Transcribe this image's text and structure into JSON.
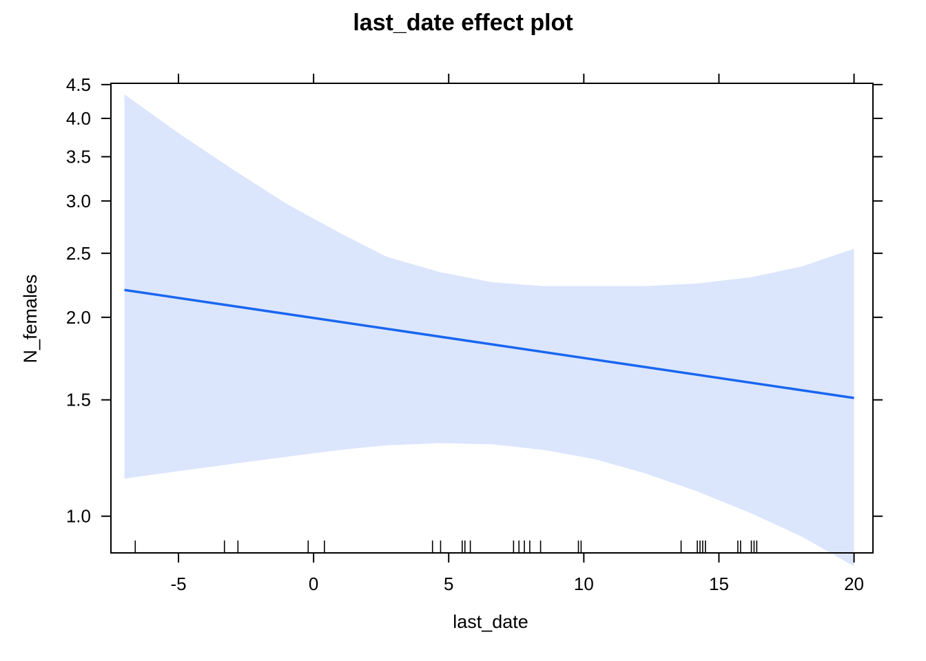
{
  "chart_data": {
    "type": "line",
    "title": "last_date effect plot",
    "xlabel": "last_date",
    "ylabel": "N_females",
    "xlim": [
      -7.5,
      20.7
    ],
    "ylim": [
      0.88,
      4.52
    ],
    "y_scale": "log",
    "x_ticks": [
      -5,
      0,
      5,
      10,
      15,
      20
    ],
    "x_tick_labels": [
      "-5",
      "0",
      "5",
      "10",
      "15",
      "20"
    ],
    "y_ticks": [
      1.0,
      1.5,
      2.0,
      2.5,
      3.0,
      3.5,
      4.0,
      4.5
    ],
    "y_tick_labels": [
      "1.0",
      "1.5",
      "2.0",
      "2.5",
      "3.0",
      "3.5",
      "4.0",
      "4.5"
    ],
    "grid": false,
    "legend": "none",
    "colors": {
      "line": "#1a66f0",
      "band": "#dbe6fd",
      "axes": "#000000"
    },
    "series": [
      {
        "x": [
          -7.0,
          20.0
        ],
        "y": [
          2.2,
          1.51
        ]
      }
    ],
    "confidence_band": {
      "x": [
        -7.0,
        -5.0,
        -3.0,
        -1.0,
        1.0,
        2.7,
        4.7,
        6.6,
        8.5,
        10.4,
        12.3,
        14.2,
        16.2,
        18.1,
        20.0
      ],
      "lower": [
        1.14,
        1.17,
        1.2,
        1.23,
        1.26,
        1.28,
        1.29,
        1.285,
        1.26,
        1.22,
        1.16,
        1.09,
        1.01,
        0.93,
        0.84
      ],
      "upper": [
        4.35,
        3.8,
        3.35,
        2.97,
        2.68,
        2.47,
        2.34,
        2.26,
        2.23,
        2.23,
        2.23,
        2.25,
        2.3,
        2.39,
        2.54
      ]
    },
    "rug_x": [
      -6.6,
      -3.3,
      -2.8,
      -0.2,
      0.4,
      4.4,
      4.7,
      5.5,
      5.6,
      5.8,
      7.4,
      7.6,
      7.8,
      8.0,
      8.4,
      9.8,
      9.9,
      13.6,
      14.2,
      14.3,
      14.4,
      14.5,
      15.7,
      15.8,
      16.2,
      16.3,
      16.4
    ]
  }
}
